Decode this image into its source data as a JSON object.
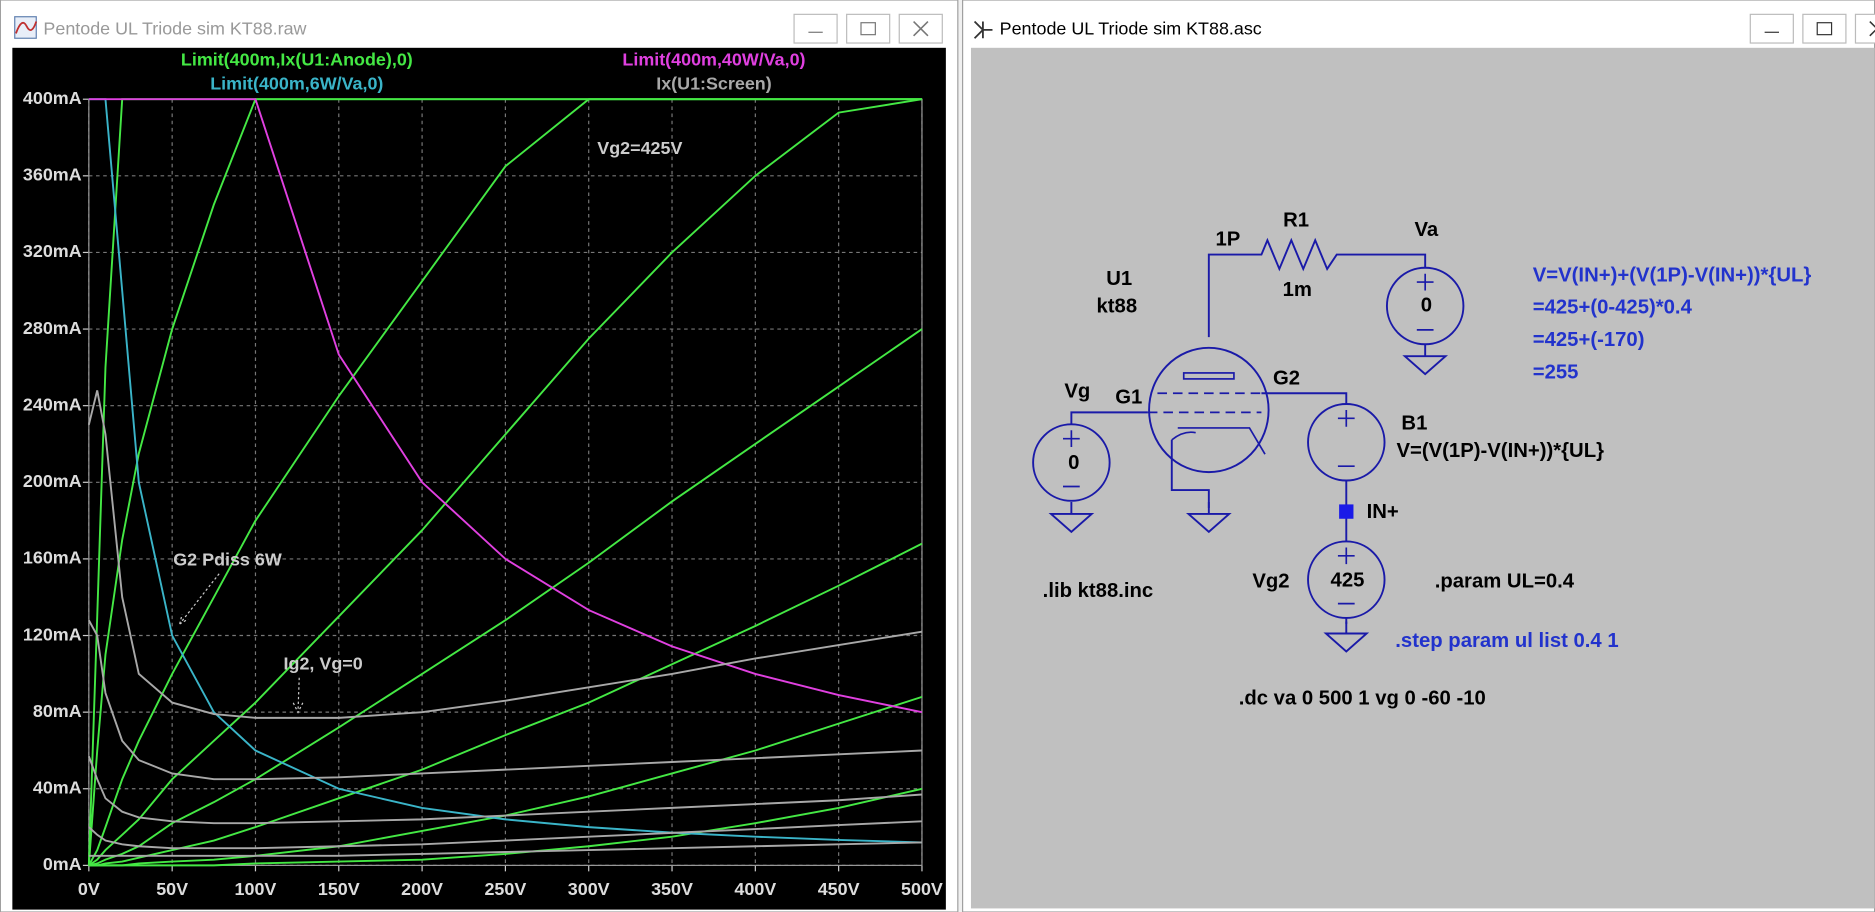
{
  "plot_window": {
    "title": "Pentode UL Triode sim KT88.raw"
  },
  "schematic_window": {
    "title": "Pentode UL Triode sim KT88.asc"
  },
  "chart_data": {
    "type": "line",
    "x": [
      0,
      5,
      10,
      20,
      30,
      50,
      75,
      100,
      150,
      200,
      250,
      300,
      350,
      400,
      450,
      500
    ],
    "xlim": [
      0,
      500
    ],
    "xticks": [
      {
        "value": 0,
        "label": "0V"
      },
      {
        "value": 50,
        "label": "50V"
      },
      {
        "value": 100,
        "label": "100V"
      },
      {
        "value": 150,
        "label": "150V"
      },
      {
        "value": 200,
        "label": "200V"
      },
      {
        "value": 250,
        "label": "250V"
      },
      {
        "value": 300,
        "label": "300V"
      },
      {
        "value": 350,
        "label": "350V"
      },
      {
        "value": 400,
        "label": "400V"
      },
      {
        "value": 450,
        "label": "450V"
      },
      {
        "value": 500,
        "label": "500V"
      }
    ],
    "ylim": [
      0,
      400
    ],
    "yticks": [
      {
        "value": 0,
        "label": "0mA"
      },
      {
        "value": 40,
        "label": "40mA"
      },
      {
        "value": 80,
        "label": "80mA"
      },
      {
        "value": 120,
        "label": "120mA"
      },
      {
        "value": 160,
        "label": "160mA"
      },
      {
        "value": 200,
        "label": "200mA"
      },
      {
        "value": 240,
        "label": "240mA"
      },
      {
        "value": 280,
        "label": "280mA"
      },
      {
        "value": 320,
        "label": "320mA"
      },
      {
        "value": 360,
        "label": "360mA"
      },
      {
        "value": 400,
        "label": "400mA"
      }
    ],
    "grid": true,
    "series": [
      {
        "name": "Limit(400m,Ix(U1:Anode),0)",
        "color": "#44e844",
        "curves": [
          [
            0,
            130,
            260,
            400,
            400,
            400,
            400,
            400,
            400,
            400,
            400,
            400,
            400,
            400,
            400,
            400
          ],
          [
            0,
            60,
            110,
            170,
            215,
            280,
            345,
            400,
            400,
            400,
            400,
            400,
            400,
            400,
            400,
            400
          ],
          [
            0,
            8,
            20,
            45,
            65,
            100,
            140,
            180,
            245,
            305,
            365,
            400,
            400,
            400,
            400,
            400
          ],
          [
            0,
            3,
            8,
            16,
            24,
            45,
            65,
            85,
            130,
            175,
            225,
            275,
            320,
            360,
            393,
            400
          ],
          [
            0,
            1,
            3,
            6,
            10,
            22,
            33,
            45,
            72,
            100,
            128,
            158,
            190,
            220,
            250,
            280
          ],
          [
            0,
            0,
            1,
            2,
            4,
            8,
            13,
            20,
            35,
            50,
            68,
            85,
            105,
            125,
            146,
            168
          ],
          [
            0,
            0,
            0,
            0,
            1,
            2,
            3,
            5,
            10,
            18,
            26,
            36,
            48,
            60,
            74,
            88
          ],
          [
            0,
            0,
            0,
            0,
            0,
            0,
            0,
            1,
            2,
            3,
            6,
            10,
            15,
            22,
            30,
            40
          ]
        ]
      },
      {
        "name": "Limit(400m,6W/Va,0)",
        "color": "#3ab4c8",
        "curves": [
          [
            400,
            400,
            400,
            300,
            200,
            120,
            80,
            60,
            40,
            30,
            24,
            20,
            17.1,
            15,
            13.3,
            12
          ]
        ]
      },
      {
        "name": "Limit(400m,40W/Va,0)",
        "color": "#e040e0",
        "curves": [
          [
            400,
            400,
            400,
            400,
            400,
            400,
            400,
            400,
            266.7,
            200,
            160,
            133.3,
            114.3,
            100,
            88.9,
            80
          ]
        ]
      },
      {
        "name": "Ix(U1:Screen)",
        "color": "#a8a8a8",
        "curves": [
          [
            230,
            248,
            225,
            140,
            100,
            85,
            79,
            77,
            77,
            80,
            86,
            93,
            100,
            108,
            115,
            122
          ],
          [
            128,
            120,
            90,
            65,
            55,
            48,
            45,
            45,
            46,
            48,
            50,
            52,
            54,
            56,
            58,
            60
          ],
          [
            57,
            45,
            35,
            28,
            25,
            23,
            22,
            22,
            23,
            24,
            26,
            28,
            30,
            32,
            34,
            37
          ],
          [
            20,
            16,
            13,
            11,
            10,
            9,
            9,
            9,
            10,
            11,
            13,
            15,
            17,
            19,
            21,
            23
          ],
          [
            5,
            5,
            5,
            5,
            5,
            5,
            5,
            5,
            5,
            6,
            7,
            8,
            9,
            10,
            11,
            12
          ]
        ]
      }
    ],
    "annotations": [
      "Vg2=425V",
      "G2 Pdiss 6W",
      "Ig2, Vg=0"
    ]
  },
  "schematic": {
    "labels": {
      "u1": "U1",
      "model": "kt88",
      "node_1p": "1P",
      "r1": "R1",
      "r1_value": "1m",
      "va": "Va",
      "va_value": "0",
      "vg": "Vg",
      "vg_value": "0",
      "g1": "G1",
      "g2": "G2",
      "b1": "B1",
      "b1_expr": "V=(V(1P)-V(IN+))*{UL}",
      "in_plus": "IN+",
      "vg2": "Vg2",
      "vg2_value": "425",
      "lib": ".lib kt88.inc",
      "param": ".param UL=0.4",
      "step": ".step param ul list  0.4 1",
      "dc": ".dc va 0 500 1 vg 0 -60 -10"
    },
    "comment_lines": [
      "V=V(IN+)+(V(1P)-V(IN+))*{UL}",
      "=425+(0-425)*0.4",
      "=425+(-170)",
      "=255"
    ]
  }
}
